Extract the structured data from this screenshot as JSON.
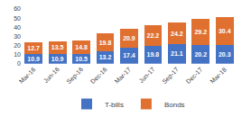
{
  "chart_data": {
    "type": "bar",
    "stacked": true,
    "categories": [
      "Mar-16",
      "Jun-16",
      "Sep-16",
      "Dec-16",
      "Mar-17",
      "Jun-17",
      "Sep-17",
      "Dec-17",
      "Mar-18"
    ],
    "series": [
      {
        "name": "T-bills",
        "color": "#4472c4",
        "values": [
          10.9,
          10.9,
          10.5,
          13.2,
          17.4,
          19.8,
          21.1,
          20.2,
          20.3
        ]
      },
      {
        "name": "Bonds",
        "color": "#e07030",
        "values": [
          12.7,
          13.5,
          14.8,
          19.8,
          20.9,
          22.2,
          24.2,
          29.2,
          30.4
        ]
      }
    ],
    "ylim": [
      0,
      60
    ],
    "yticks": [
      0,
      10,
      20,
      30,
      40,
      50,
      60
    ],
    "grid": false,
    "legend": "bottom",
    "data_labels": true
  }
}
